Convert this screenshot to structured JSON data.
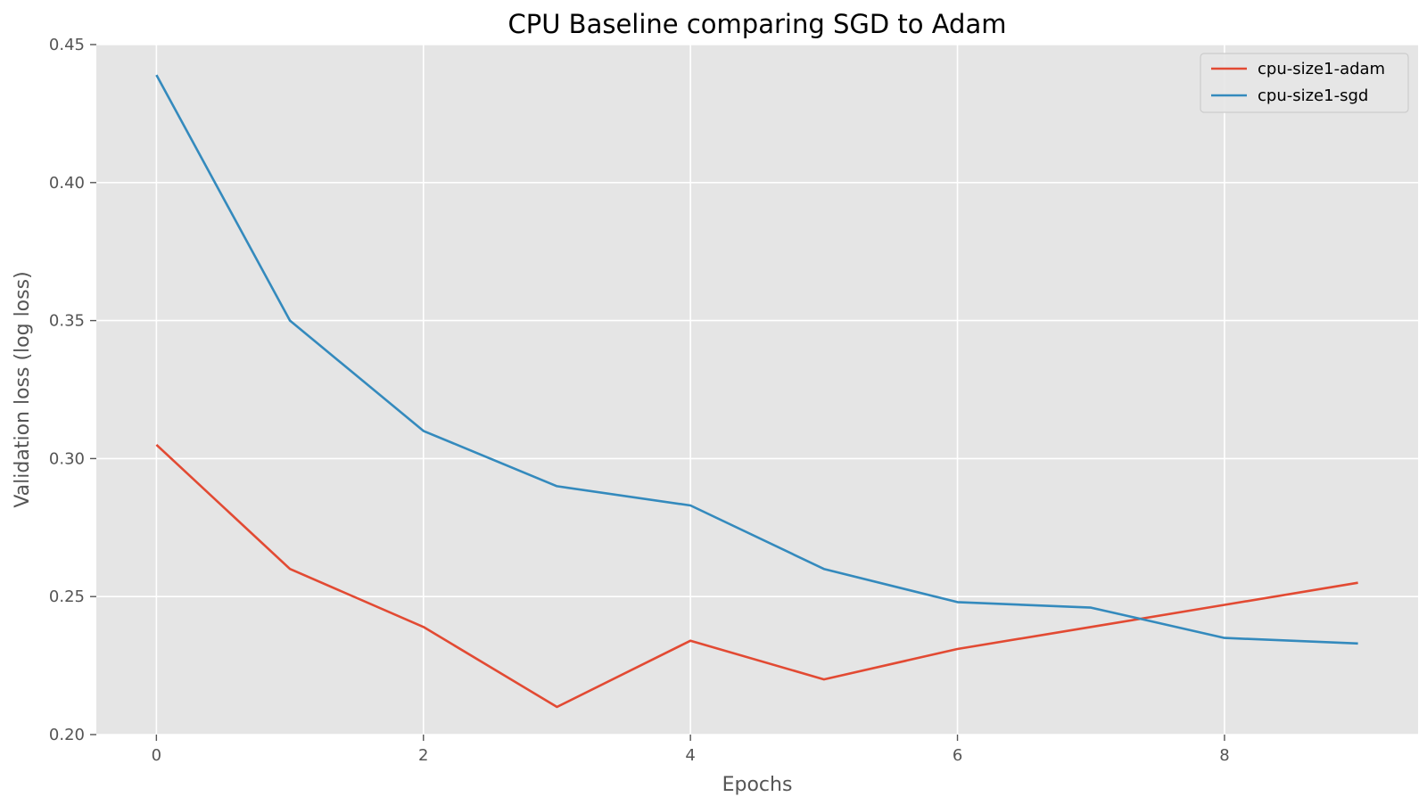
{
  "chart_data": {
    "type": "line",
    "title": "CPU Baseline comparing SGD to Adam",
    "xlabel": "Epochs",
    "ylabel": "Validation loss (log loss)",
    "x": [
      0,
      1,
      2,
      3,
      4,
      5,
      6,
      7,
      8,
      9
    ],
    "xlim": [
      -0.45,
      9.45
    ],
    "ylim": [
      0.2,
      0.45
    ],
    "xticks": [
      "0",
      "2",
      "4",
      "6",
      "8"
    ],
    "yticks": [
      "0.20",
      "0.25",
      "0.30",
      "0.35",
      "0.40",
      "0.45"
    ],
    "grid": true,
    "legend_position": "top-right",
    "background_color": "#e5e5e5",
    "grid_color": "#ffffff",
    "series": [
      {
        "name": "cpu-size1-adam",
        "color": "#e24a33",
        "values": [
          0.305,
          0.26,
          0.239,
          0.21,
          0.234,
          0.22,
          0.231,
          0.239,
          0.247,
          0.255
        ]
      },
      {
        "name": "cpu-size1-sgd",
        "color": "#348abd",
        "values": [
          0.439,
          0.35,
          0.31,
          0.29,
          0.283,
          0.26,
          0.248,
          0.246,
          0.235,
          0.233
        ]
      }
    ]
  }
}
